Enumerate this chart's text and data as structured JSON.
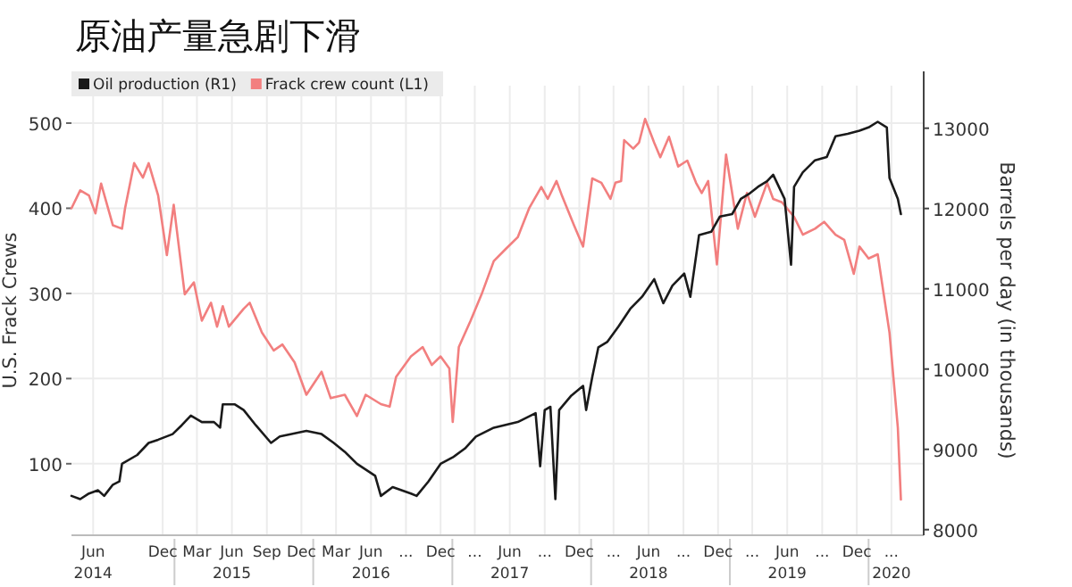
{
  "chart_data": {
    "type": "line",
    "title": "原油产量急剧下滑",
    "ylabel": "U.S. Frack Crews",
    "y2label": "Barrels per day (in thousands)",
    "grid": true,
    "legend": "top left",
    "xlim": [
      "2014-04-05",
      "2020-05-25"
    ],
    "xticks": [
      {
        "value": "2014-06-01",
        "label": "Jun\n2014"
      },
      {
        "value": "2014-12-01",
        "label": "Dec"
      },
      {
        "value": "2015-03-01",
        "label": "Mar"
      },
      {
        "value": "2015-06-01",
        "label": "Jun\n2015"
      },
      {
        "value": "2015-09-01",
        "label": "Sep"
      },
      {
        "value": "2015-12-01",
        "label": "Dec"
      },
      {
        "value": "2016-03-01",
        "label": "Mar"
      },
      {
        "value": "2016-06-01",
        "label": "Jun\n2016"
      },
      {
        "value": "2016-09-01",
        "label": "..."
      },
      {
        "value": "2016-12-01",
        "label": "Dec"
      },
      {
        "value": "2017-03-01",
        "label": "..."
      },
      {
        "value": "2017-06-01",
        "label": "Jun\n2017"
      },
      {
        "value": "2017-09-01",
        "label": "..."
      },
      {
        "value": "2017-12-01",
        "label": "Dec"
      },
      {
        "value": "2018-03-01",
        "label": "..."
      },
      {
        "value": "2018-06-01",
        "label": "Jun\n2018"
      },
      {
        "value": "2018-09-01",
        "label": "..."
      },
      {
        "value": "2018-12-01",
        "label": "Dec"
      },
      {
        "value": "2019-03-01",
        "label": "..."
      },
      {
        "value": "2019-06-01",
        "label": "Jun\n2019"
      },
      {
        "value": "2019-09-01",
        "label": "..."
      },
      {
        "value": "2019-12-01",
        "label": "Dec"
      },
      {
        "value": "2020-03-01",
        "label": "...\n2020"
      }
    ],
    "ylim": [
      16,
      544
    ],
    "yticks": [
      100,
      200,
      300,
      400,
      500
    ],
    "y2lim": [
      7930,
      13530
    ],
    "y2ticks": [
      8000,
      9000,
      10000,
      11000,
      12000,
      13000
    ],
    "series": [
      {
        "name": "Oil production (R1)",
        "color": "#1a1a1a",
        "axis": "y2",
        "x": [
          "2014-04-05",
          "2014-04-28",
          "2014-05-21",
          "2014-06-14",
          "2014-06-30",
          "2014-07-23",
          "2014-08-09",
          "2014-08-16",
          "2014-09-25",
          "2014-10-25",
          "2014-11-19",
          "2014-12-27",
          "2015-01-20",
          "2015-02-13",
          "2015-03-14",
          "2015-04-15",
          "2015-05-01",
          "2015-05-08",
          "2015-06-09",
          "2015-07-02",
          "2015-08-03",
          "2015-09-12",
          "2015-10-05",
          "2015-11-05",
          "2015-12-14",
          "2016-01-23",
          "2016-02-24",
          "2016-03-24",
          "2016-04-25",
          "2016-06-12",
          "2016-06-27",
          "2016-07-28",
          "2016-09-14",
          "2016-09-29",
          "2016-10-30",
          "2016-12-01",
          "2017-01-02",
          "2017-02-03",
          "2017-03-04",
          "2017-04-20",
          "2017-06-22",
          "2017-08-08",
          "2017-08-20",
          "2017-09-01",
          "2017-09-16",
          "2017-09-29",
          "2017-10-09",
          "2017-11-10",
          "2017-12-11",
          "2017-12-19",
          "2018-01-04",
          "2018-01-20",
          "2018-02-13",
          "2018-03-14",
          "2018-04-14",
          "2018-05-15",
          "2018-06-16",
          "2018-07-10",
          "2018-08-03",
          "2018-09-03",
          "2018-09-19",
          "2018-10-12",
          "2018-11-13",
          "2018-12-06",
          "2019-01-07",
          "2019-01-30",
          "2019-02-23",
          "2019-03-16",
          "2019-04-09",
          "2019-04-25",
          "2019-05-25",
          "2019-06-11",
          "2019-06-19",
          "2019-07-12",
          "2019-08-13",
          "2019-09-13",
          "2019-10-06",
          "2019-11-07",
          "2019-12-08",
          "2020-01-01",
          "2020-01-25",
          "2020-02-18",
          "2020-02-25",
          "2020-03-18",
          "2020-03-26"
        ],
        "values": [
          8420,
          8380,
          8450,
          8490,
          8420,
          8560,
          8600,
          8820,
          8930,
          9080,
          9120,
          9190,
          9300,
          9420,
          9340,
          9340,
          9270,
          9560,
          9560,
          9490,
          9300,
          9080,
          9160,
          9190,
          9230,
          9190,
          9080,
          8970,
          8820,
          8670,
          8420,
          8530,
          8450,
          8420,
          8600,
          8820,
          8900,
          9010,
          9160,
          9270,
          9340,
          9450,
          8790,
          9490,
          9530,
          8380,
          9490,
          9670,
          9790,
          9490,
          9900,
          10270,
          10340,
          10530,
          10750,
          10900,
          11120,
          10820,
          11040,
          11190,
          10900,
          11670,
          11710,
          11900,
          11930,
          12120,
          12190,
          12270,
          12340,
          12420,
          12120,
          11300,
          12270,
          12450,
          12600,
          12640,
          12900,
          12930,
          12970,
          13010,
          13080,
          13010,
          12380,
          12120,
          11930
        ]
      },
      {
        "name": "Frack crew count (L1)",
        "color": "#f27f7f",
        "axis": "y",
        "x": [
          "2014-04-05",
          "2014-04-28",
          "2014-05-21",
          "2014-06-07",
          "2014-06-22",
          "2014-07-23",
          "2014-08-16",
          "2014-08-24",
          "2014-09-17",
          "2014-10-10",
          "2014-10-25",
          "2014-11-19",
          "2014-12-12",
          "2014-12-30",
          "2015-01-28",
          "2015-02-21",
          "2015-03-14",
          "2015-04-07",
          "2015-04-23",
          "2015-05-08",
          "2015-05-24",
          "2015-07-02",
          "2015-07-18",
          "2015-08-19",
          "2015-09-19",
          "2015-10-12",
          "2015-11-13",
          "2015-12-14",
          "2016-01-23",
          "2016-02-16",
          "2016-03-24",
          "2016-04-25",
          "2016-05-18",
          "2016-06-27",
          "2016-07-20",
          "2016-08-06",
          "2016-09-14",
          "2016-10-15",
          "2016-11-08",
          "2016-12-01",
          "2016-12-24",
          "2017-01-02",
          "2017-01-18",
          "2017-02-18",
          "2017-03-19",
          "2017-04-20",
          "2017-05-21",
          "2017-06-22",
          "2017-07-22",
          "2017-08-23",
          "2017-09-09",
          "2017-10-02",
          "2017-10-17",
          "2017-11-18",
          "2017-12-11",
          "2018-01-04",
          "2018-01-28",
          "2018-02-21",
          "2018-03-06",
          "2018-03-21",
          "2018-03-29",
          "2018-04-22",
          "2018-05-07",
          "2018-05-23",
          "2018-06-16",
          "2018-07-02",
          "2018-07-25",
          "2018-08-18",
          "2018-09-11",
          "2018-10-04",
          "2018-10-19",
          "2018-11-05",
          "2018-11-28",
          "2018-12-22",
          "2019-01-22",
          "2019-02-15",
          "2019-03-08",
          "2019-04-09",
          "2019-04-25",
          "2019-05-18",
          "2019-06-19",
          "2019-07-12",
          "2019-08-13",
          "2019-09-06",
          "2019-10-06",
          "2019-10-29",
          "2019-11-23",
          "2019-12-08",
          "2020-01-01",
          "2020-01-25",
          "2020-02-25",
          "2020-03-18",
          "2020-03-26"
        ],
        "values": [
          400,
          421,
          415,
          394,
          429,
          380,
          376,
          400,
          453,
          436,
          453,
          415,
          345,
          404,
          299,
          313,
          268,
          289,
          261,
          285,
          261,
          282,
          289,
          254,
          233,
          240,
          219,
          181,
          208,
          177,
          181,
          156,
          181,
          170,
          167,
          202,
          226,
          237,
          216,
          226,
          212,
          149,
          237,
          268,
          299,
          338,
          352,
          366,
          400,
          425,
          411,
          432,
          414,
          379,
          355,
          435,
          430,
          411,
          430,
          432,
          480,
          470,
          477,
          505,
          477,
          460,
          484,
          449,
          456,
          430,
          418,
          432,
          334,
          463,
          376,
          418,
          390,
          430,
          411,
          407,
          390,
          369,
          376,
          384,
          369,
          363,
          323,
          355,
          341,
          346,
          254,
          142,
          58
        ]
      }
    ]
  }
}
